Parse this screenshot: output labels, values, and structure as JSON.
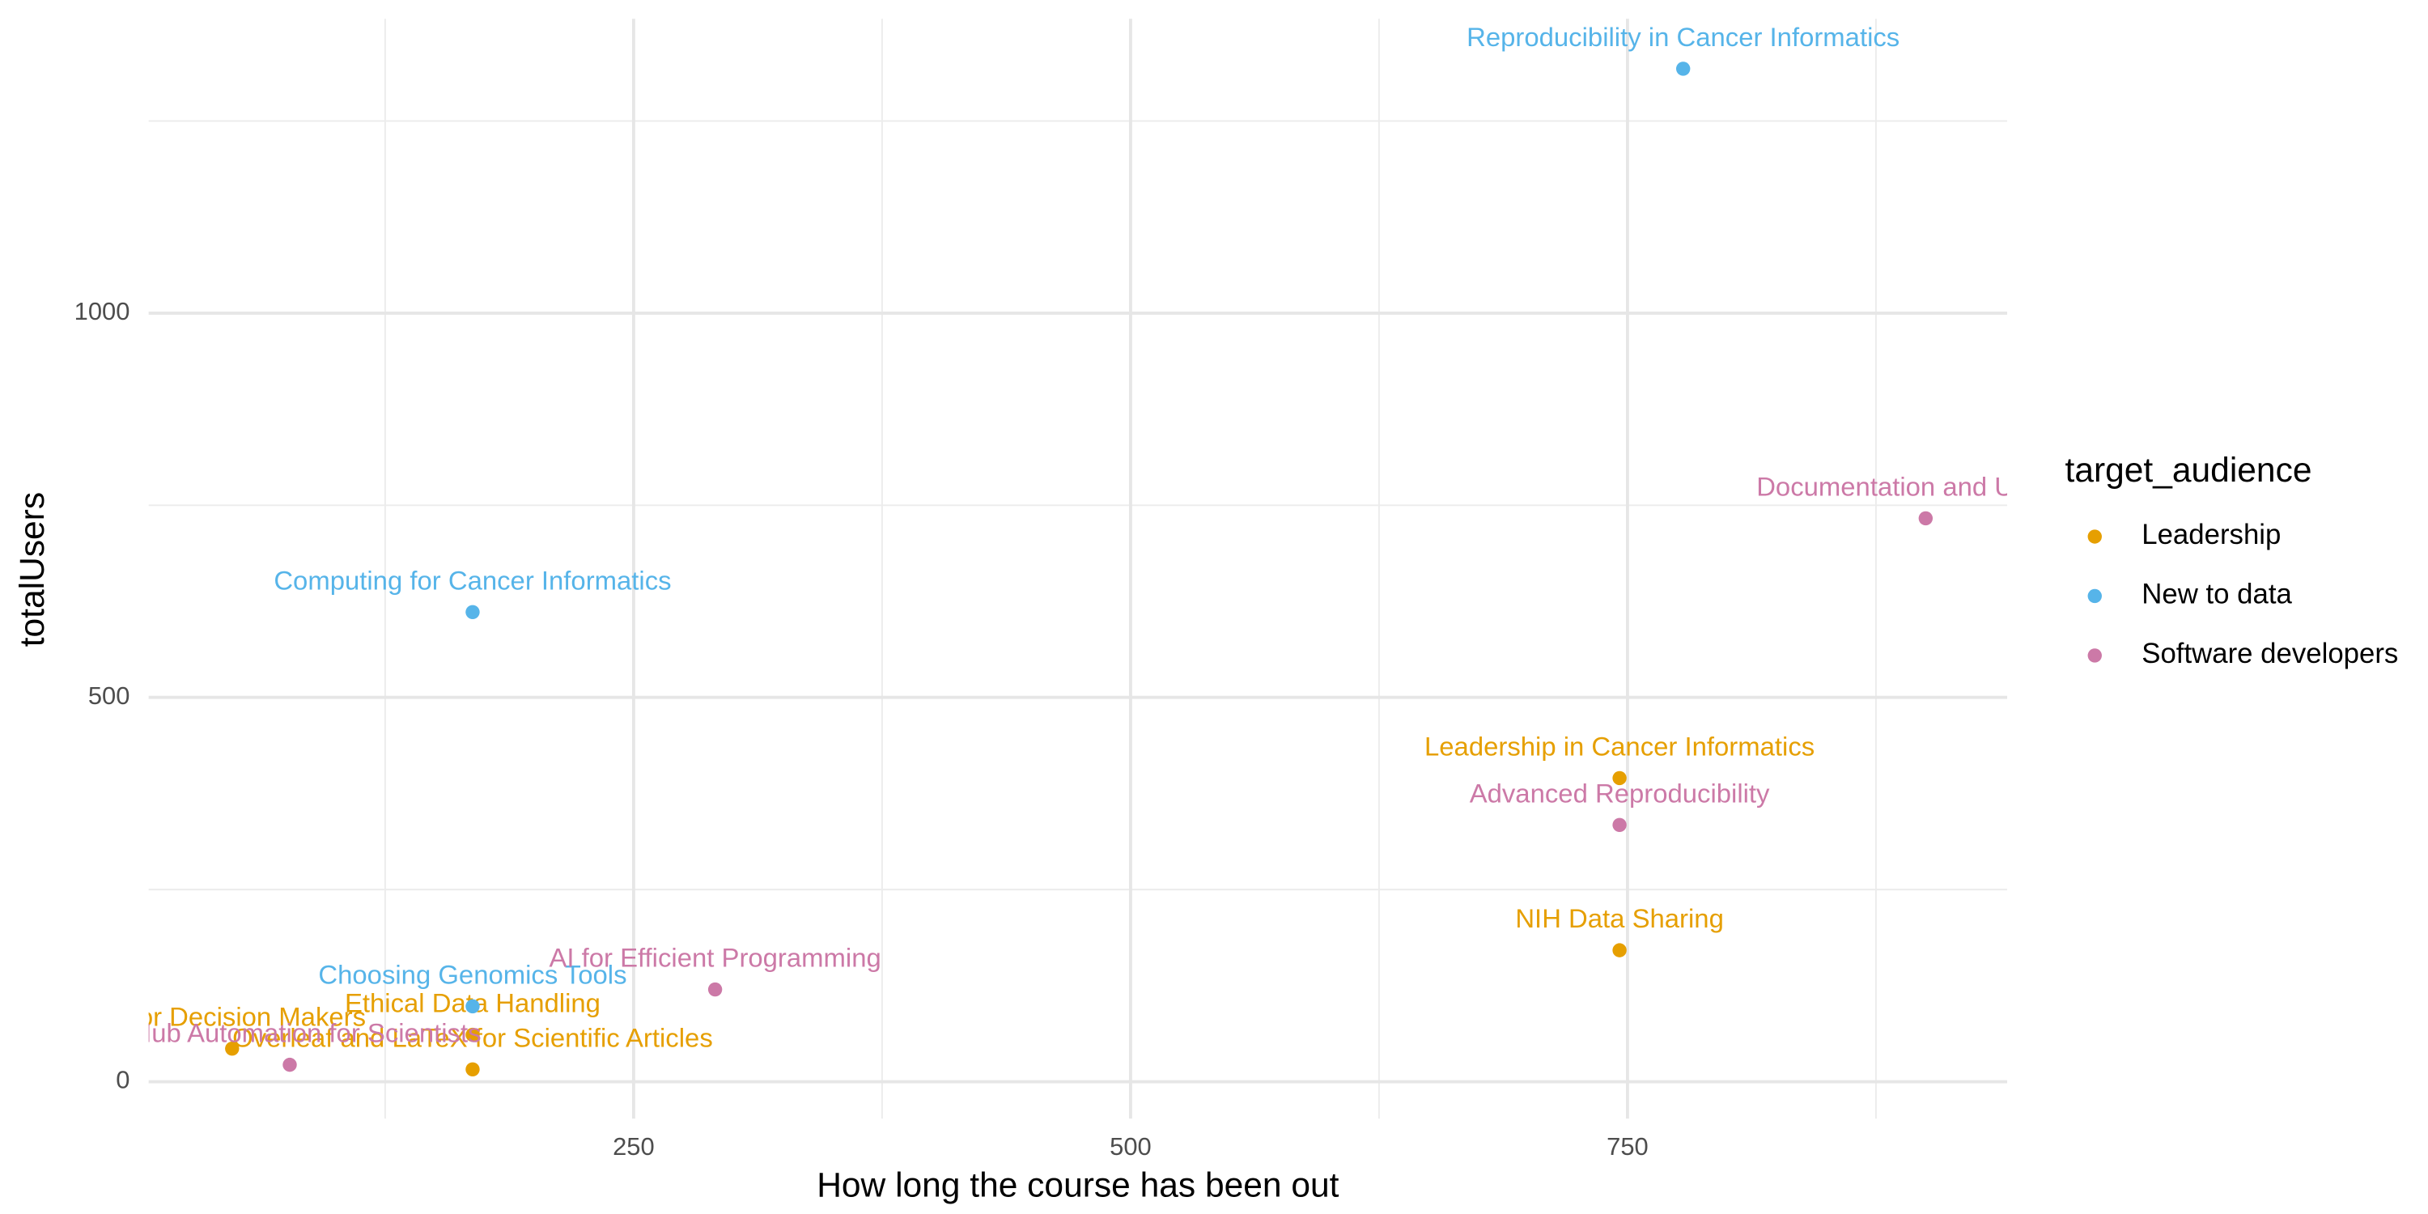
{
  "chart_data": {
    "type": "scatter",
    "x_label": "How long the course has been out",
    "y_label": "totalUsers",
    "legend_title": "target_audience",
    "legend_position": "right",
    "grid": true,
    "xlim": [
      6,
      941
    ],
    "ylim": [
      -48,
      1383
    ],
    "xticks": [
      250,
      500,
      750
    ],
    "yticks": [
      0,
      500,
      1000
    ],
    "x_minor_ticks": [
      125,
      375,
      625,
      875
    ],
    "y_minor_ticks": [
      250,
      750,
      1250
    ],
    "series": [
      {
        "name": "Leadership",
        "color": "#E69F00",
        "x": [
          746,
          746,
          169,
          169,
          48
        ],
        "values": [
          395,
          171,
          61,
          16,
          43
        ],
        "labels": [
          "Leadership in Cancer Informatics",
          "NIH Data Sharing",
          "Ethical Data Handling",
          "Overleaf and LaTeX for Scientific Articles",
          "AI for Decision Makers"
        ]
      },
      {
        "name": "New to data",
        "color": "#56B4E9",
        "x": [
          778,
          169,
          169
        ],
        "values": [
          1318,
          611,
          98
        ],
        "labels": [
          "Reproducibility in Cancer Informatics",
          "Computing for Cancer Informatics",
          "Choosing Genomics Tools"
        ]
      },
      {
        "name": "Software developers",
        "color": "#CC79A7",
        "x": [
          900,
          746,
          291,
          77
        ],
        "values": [
          733,
          334,
          120,
          22
        ],
        "labels": [
          "Documentation and Usability",
          "Advanced Reproducibility",
          "AI for Efficient Programming",
          "GitHub Automation for Scientists"
        ]
      }
    ]
  }
}
